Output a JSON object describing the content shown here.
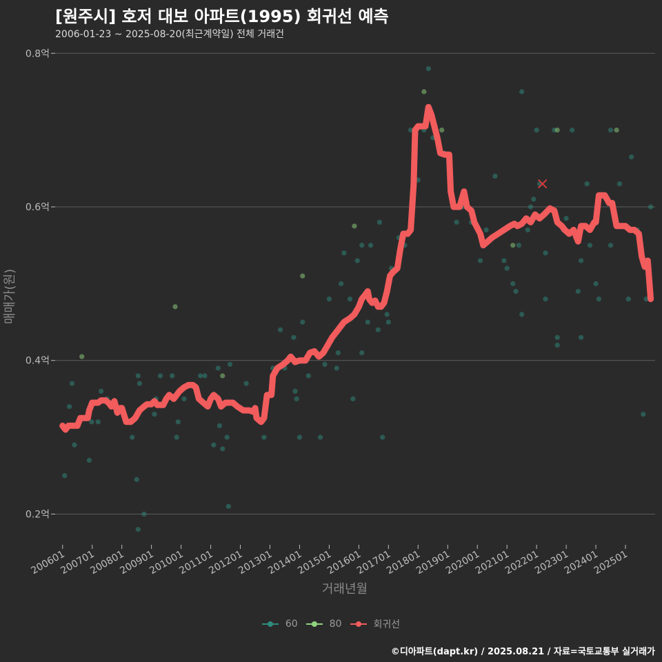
{
  "chart_data": {
    "type": "scatter",
    "title": "[원주시] 호저 대보 아파트(1995) 회귀선 예측",
    "subtitle": "2006-01-23 ~ 2025-08-20(최근계약일) 전체 거래건",
    "xlabel": "거래년월",
    "ylabel": "매매가(원)",
    "ylim": [
      0.16,
      0.82
    ],
    "y_ticks": [
      0.2,
      0.4,
      0.6,
      0.8
    ],
    "y_tick_labels": [
      "0.2억",
      "0.4억",
      "0.6억",
      "0.8억"
    ],
    "x_range": [
      2005.75,
      2026.0
    ],
    "x_ticks": [
      2006,
      2007,
      2008,
      2009,
      2010,
      2011,
      2012,
      2013,
      2014,
      2015,
      2016,
      2017,
      2018,
      2019,
      2020,
      2021,
      2022,
      2023,
      2024,
      2025
    ],
    "x_tick_labels": [
      "200601",
      "200701",
      "200801",
      "200901",
      "201001",
      "201101",
      "201201",
      "201301",
      "201401",
      "201501",
      "201601",
      "201701",
      "201801",
      "201901",
      "202001",
      "202101",
      "202201",
      "202301",
      "202401",
      "202501"
    ],
    "legend": [
      {
        "name": "60",
        "color": "#2e8b7e"
      },
      {
        "name": "80",
        "color": "#8fd47e"
      },
      {
        "name": "회귀선",
        "color": "#f25c5c"
      }
    ],
    "series": [
      {
        "name": "60",
        "color": "#2e8b7e",
        "points": [
          [
            2006.07,
            0.25
          ],
          [
            2006.23,
            0.34
          ],
          [
            2006.32,
            0.37
          ],
          [
            2006.4,
            0.29
          ],
          [
            2006.9,
            0.27
          ],
          [
            2006.98,
            0.32
          ],
          [
            2007.2,
            0.32
          ],
          [
            2007.3,
            0.36
          ],
          [
            2007.5,
            0.35
          ],
          [
            2008.35,
            0.3
          ],
          [
            2008.5,
            0.245
          ],
          [
            2008.55,
            0.38
          ],
          [
            2008.6,
            0.37
          ],
          [
            2008.75,
            0.2
          ],
          [
            2008.55,
            0.18
          ],
          [
            2009.1,
            0.33
          ],
          [
            2009.15,
            0.35
          ],
          [
            2009.3,
            0.38
          ],
          [
            2009.5,
            0.35
          ],
          [
            2009.7,
            0.38
          ],
          [
            2009.85,
            0.3
          ],
          [
            2009.9,
            0.32
          ],
          [
            2010.1,
            0.35
          ],
          [
            2010.65,
            0.38
          ],
          [
            2010.8,
            0.38
          ],
          [
            2011.1,
            0.29
          ],
          [
            2011.25,
            0.39
          ],
          [
            2011.3,
            0.315
          ],
          [
            2011.4,
            0.285
          ],
          [
            2011.55,
            0.3
          ],
          [
            2011.6,
            0.21
          ],
          [
            2011.65,
            0.395
          ],
          [
            2012.2,
            0.37
          ],
          [
            2012.8,
            0.3
          ],
          [
            2013.1,
            0.39
          ],
          [
            2013.3,
            0.39
          ],
          [
            2013.35,
            0.44
          ],
          [
            2013.5,
            0.39
          ],
          [
            2013.8,
            0.43
          ],
          [
            2013.85,
            0.36
          ],
          [
            2013.9,
            0.35
          ],
          [
            2014.0,
            0.3
          ],
          [
            2014.05,
            0.4
          ],
          [
            2014.1,
            0.45
          ],
          [
            2014.3,
            0.38
          ],
          [
            2014.7,
            0.3
          ],
          [
            2014.85,
            0.395
          ],
          [
            2015.0,
            0.48
          ],
          [
            2015.25,
            0.39
          ],
          [
            2015.3,
            0.41
          ],
          [
            2015.4,
            0.5
          ],
          [
            2015.5,
            0.54
          ],
          [
            2015.55,
            0.45
          ],
          [
            2015.7,
            0.48
          ],
          [
            2015.8,
            0.35
          ],
          [
            2015.95,
            0.53
          ],
          [
            2016.1,
            0.41
          ],
          [
            2016.1,
            0.55
          ],
          [
            2016.3,
            0.45
          ],
          [
            2016.4,
            0.55
          ],
          [
            2016.65,
            0.44
          ],
          [
            2016.7,
            0.58
          ],
          [
            2016.8,
            0.3
          ],
          [
            2016.95,
            0.46
          ],
          [
            2017.0,
            0.45
          ],
          [
            2017.1,
            0.52
          ],
          [
            2017.35,
            0.56
          ],
          [
            2017.55,
            0.55
          ],
          [
            2017.75,
            0.7
          ],
          [
            2018.0,
            0.635
          ],
          [
            2018.2,
            0.7
          ],
          [
            2018.35,
            0.78
          ],
          [
            2018.5,
            0.69
          ],
          [
            2018.6,
            0.69
          ],
          [
            2018.9,
            0.67
          ],
          [
            2019.1,
            0.62
          ],
          [
            2019.3,
            0.58
          ],
          [
            2019.5,
            0.6
          ],
          [
            2019.65,
            0.6
          ],
          [
            2019.8,
            0.58
          ],
          [
            2020.1,
            0.53
          ],
          [
            2020.3,
            0.57
          ],
          [
            2020.6,
            0.64
          ],
          [
            2020.9,
            0.53
          ],
          [
            2021.0,
            0.52
          ],
          [
            2021.2,
            0.5
          ],
          [
            2021.3,
            0.49
          ],
          [
            2021.4,
            0.55
          ],
          [
            2021.5,
            0.46
          ],
          [
            2021.5,
            0.75
          ],
          [
            2021.7,
            0.57
          ],
          [
            2021.8,
            0.6
          ],
          [
            2021.9,
            0.61
          ],
          [
            2022.0,
            0.7
          ],
          [
            2022.1,
            0.63
          ],
          [
            2022.3,
            0.48
          ],
          [
            2022.3,
            0.54
          ],
          [
            2022.6,
            0.7
          ],
          [
            2022.7,
            0.42
          ],
          [
            2022.7,
            0.43
          ],
          [
            2022.9,
            0.57
          ],
          [
            2023.0,
            0.585
          ],
          [
            2023.2,
            0.7
          ],
          [
            2023.4,
            0.49
          ],
          [
            2023.5,
            0.53
          ],
          [
            2023.5,
            0.43
          ],
          [
            2023.7,
            0.63
          ],
          [
            2023.8,
            0.55
          ],
          [
            2024.0,
            0.5
          ],
          [
            2024.1,
            0.48
          ],
          [
            2024.5,
            0.55
          ],
          [
            2024.5,
            0.7
          ],
          [
            2024.8,
            0.63
          ],
          [
            2025.1,
            0.48
          ],
          [
            2025.2,
            0.665
          ],
          [
            2025.4,
            0.57
          ],
          [
            2025.6,
            0.33
          ],
          [
            2025.7,
            0.48
          ],
          [
            2025.85,
            0.6
          ]
        ]
      },
      {
        "name": "80",
        "color": "#8fd47e",
        "points": [
          [
            2006.65,
            0.405
          ],
          [
            2009.8,
            0.47
          ],
          [
            2011.4,
            0.38
          ],
          [
            2014.1,
            0.51
          ],
          [
            2015.85,
            0.575
          ],
          [
            2018.2,
            0.75
          ],
          [
            2018.8,
            0.7
          ],
          [
            2021.2,
            0.55
          ],
          [
            2022.7,
            0.7
          ],
          [
            2024.7,
            0.7
          ]
        ]
      }
    ],
    "predicted_point": [
      2022.2,
      0.63
    ],
    "regression_line": {
      "name": "회귀선",
      "color": "#f25c5c",
      "points": [
        [
          2006.0,
          0.315
        ],
        [
          2006.1,
          0.31
        ],
        [
          2006.2,
          0.315
        ],
        [
          2006.5,
          0.315
        ],
        [
          2006.6,
          0.325
        ],
        [
          2006.85,
          0.325
        ],
        [
          2006.9,
          0.335
        ],
        [
          2007.0,
          0.345
        ],
        [
          2007.2,
          0.345
        ],
        [
          2007.3,
          0.348
        ],
        [
          2007.45,
          0.348
        ],
        [
          2007.55,
          0.345
        ],
        [
          2007.65,
          0.34
        ],
        [
          2007.75,
          0.347
        ],
        [
          2007.85,
          0.332
        ],
        [
          2007.95,
          0.338
        ],
        [
          2008.0,
          0.338
        ],
        [
          2008.15,
          0.32
        ],
        [
          2008.3,
          0.32
        ],
        [
          2008.45,
          0.325
        ],
        [
          2008.6,
          0.335
        ],
        [
          2008.75,
          0.34
        ],
        [
          2008.85,
          0.343
        ],
        [
          2009.0,
          0.343
        ],
        [
          2009.1,
          0.347
        ],
        [
          2009.2,
          0.342
        ],
        [
          2009.4,
          0.342
        ],
        [
          2009.5,
          0.35
        ],
        [
          2009.6,
          0.355
        ],
        [
          2009.75,
          0.35
        ],
        [
          2009.95,
          0.36
        ],
        [
          2010.1,
          0.365
        ],
        [
          2010.25,
          0.368
        ],
        [
          2010.4,
          0.368
        ],
        [
          2010.5,
          0.365
        ],
        [
          2010.6,
          0.35
        ],
        [
          2010.75,
          0.345
        ],
        [
          2010.9,
          0.34
        ],
        [
          2011.0,
          0.35
        ],
        [
          2011.1,
          0.355
        ],
        [
          2011.25,
          0.35
        ],
        [
          2011.35,
          0.34
        ],
        [
          2011.5,
          0.345
        ],
        [
          2011.75,
          0.345
        ],
        [
          2011.9,
          0.34
        ],
        [
          2012.1,
          0.335
        ],
        [
          2012.3,
          0.335
        ],
        [
          2012.45,
          0.333
        ],
        [
          2012.5,
          0.338
        ],
        [
          2012.55,
          0.325
        ],
        [
          2012.7,
          0.32
        ],
        [
          2012.8,
          0.325
        ],
        [
          2012.9,
          0.355
        ],
        [
          2013.05,
          0.355
        ],
        [
          2013.1,
          0.38
        ],
        [
          2013.25,
          0.39
        ],
        [
          2013.45,
          0.395
        ],
        [
          2013.6,
          0.4
        ],
        [
          2013.7,
          0.405
        ],
        [
          2013.85,
          0.398
        ],
        [
          2014.0,
          0.4
        ],
        [
          2014.2,
          0.4
        ],
        [
          2014.35,
          0.41
        ],
        [
          2014.5,
          0.412
        ],
        [
          2014.65,
          0.405
        ],
        [
          2014.8,
          0.41
        ],
        [
          2014.95,
          0.42
        ],
        [
          2015.1,
          0.43
        ],
        [
          2015.3,
          0.44
        ],
        [
          2015.5,
          0.45
        ],
        [
          2015.7,
          0.455
        ],
        [
          2015.85,
          0.46
        ],
        [
          2016.0,
          0.47
        ],
        [
          2016.1,
          0.48
        ],
        [
          2016.2,
          0.485
        ],
        [
          2016.3,
          0.49
        ],
        [
          2016.35,
          0.48
        ],
        [
          2016.45,
          0.475
        ],
        [
          2016.55,
          0.478
        ],
        [
          2016.65,
          0.47
        ],
        [
          2016.75,
          0.47
        ],
        [
          2016.85,
          0.475
        ],
        [
          2016.95,
          0.49
        ],
        [
          2017.05,
          0.51
        ],
        [
          2017.15,
          0.515
        ],
        [
          2017.3,
          0.52
        ],
        [
          2017.4,
          0.545
        ],
        [
          2017.5,
          0.565
        ],
        [
          2017.65,
          0.565
        ],
        [
          2017.75,
          0.57
        ],
        [
          2017.85,
          0.63
        ],
        [
          2017.9,
          0.7
        ],
        [
          2018.0,
          0.705
        ],
        [
          2018.15,
          0.705
        ],
        [
          2018.25,
          0.705
        ],
        [
          2018.35,
          0.73
        ],
        [
          2018.45,
          0.72
        ],
        [
          2018.55,
          0.705
        ],
        [
          2018.65,
          0.69
        ],
        [
          2018.75,
          0.67
        ],
        [
          2018.9,
          0.668
        ],
        [
          2019.05,
          0.668
        ],
        [
          2019.1,
          0.62
        ],
        [
          2019.2,
          0.6
        ],
        [
          2019.4,
          0.6
        ],
        [
          2019.55,
          0.62
        ],
        [
          2019.65,
          0.6
        ],
        [
          2019.8,
          0.595
        ],
        [
          2019.9,
          0.58
        ],
        [
          2020.1,
          0.565
        ],
        [
          2020.2,
          0.55
        ],
        [
          2020.35,
          0.555
        ],
        [
          2020.5,
          0.56
        ],
        [
          2020.7,
          0.565
        ],
        [
          2020.9,
          0.57
        ],
        [
          2021.1,
          0.575
        ],
        [
          2021.25,
          0.578
        ],
        [
          2021.35,
          0.575
        ],
        [
          2021.5,
          0.578
        ],
        [
          2021.65,
          0.585
        ],
        [
          2021.8,
          0.58
        ],
        [
          2021.95,
          0.59
        ],
        [
          2022.1,
          0.585
        ],
        [
          2022.25,
          0.59
        ],
        [
          2022.45,
          0.598
        ],
        [
          2022.6,
          0.595
        ],
        [
          2022.7,
          0.58
        ],
        [
          2022.85,
          0.575
        ],
        [
          2022.95,
          0.57
        ],
        [
          2023.1,
          0.565
        ],
        [
          2023.25,
          0.57
        ],
        [
          2023.4,
          0.555
        ],
        [
          2023.5,
          0.575
        ],
        [
          2023.65,
          0.575
        ],
        [
          2023.8,
          0.57
        ],
        [
          2023.95,
          0.58
        ],
        [
          2024.0,
          0.58
        ],
        [
          2024.1,
          0.615
        ],
        [
          2024.3,
          0.615
        ],
        [
          2024.45,
          0.605
        ],
        [
          2024.55,
          0.605
        ],
        [
          2024.7,
          0.575
        ],
        [
          2024.85,
          0.575
        ],
        [
          2025.0,
          0.575
        ],
        [
          2025.15,
          0.57
        ],
        [
          2025.3,
          0.57
        ],
        [
          2025.45,
          0.565
        ],
        [
          2025.55,
          0.535
        ],
        [
          2025.65,
          0.522
        ],
        [
          2025.75,
          0.53
        ],
        [
          2025.85,
          0.48
        ]
      ]
    }
  },
  "caption": "©디아파트(dapt.kr) / 2025.08.21 / 자료=국토교통부 실거래가"
}
